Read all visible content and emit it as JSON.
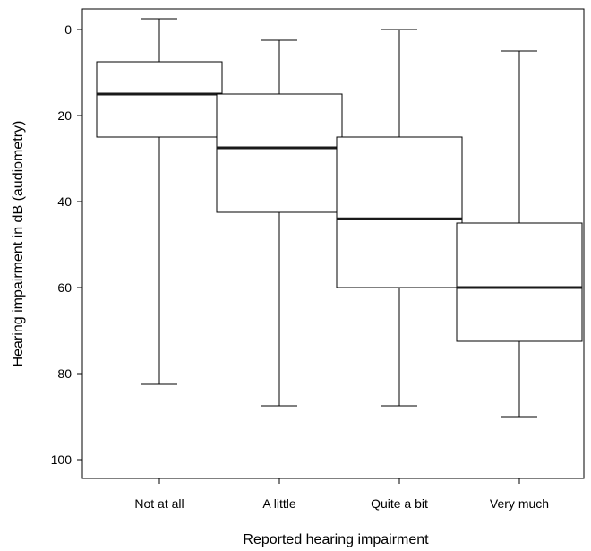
{
  "chart_data": {
    "type": "boxplot",
    "xlabel": "Reported hearing impairment",
    "ylabel": "Hearing impairment in dB (audiometry)",
    "y_axis_inverted": true,
    "ylim": [
      -3,
      104
    ],
    "yticks": [
      0,
      20,
      40,
      60,
      80,
      100
    ],
    "categories": [
      "Not at all",
      "A little",
      "Quite a bit",
      "Very much"
    ],
    "boxes": [
      {
        "category": "Not at all",
        "whisker_low": -2.5,
        "q1": 7.5,
        "median": 15,
        "q3": 25,
        "whisker_high": 82.5
      },
      {
        "category": "A little",
        "whisker_low": 2.5,
        "q1": 15,
        "median": 27.5,
        "q3": 42.5,
        "whisker_high": 87.5
      },
      {
        "category": "Quite a bit",
        "whisker_low": 0,
        "q1": 25,
        "median": 44,
        "q3": 60,
        "whisker_high": 87.5
      },
      {
        "category": "Very much",
        "whisker_low": 5,
        "q1": 45,
        "median": 60,
        "q3": 72.5,
        "whisker_high": 90
      }
    ],
    "colors": {
      "box_fill": "#ffffff",
      "stroke": "#000000",
      "median": "#1a1a1a"
    },
    "grid": false,
    "legend": "none"
  }
}
